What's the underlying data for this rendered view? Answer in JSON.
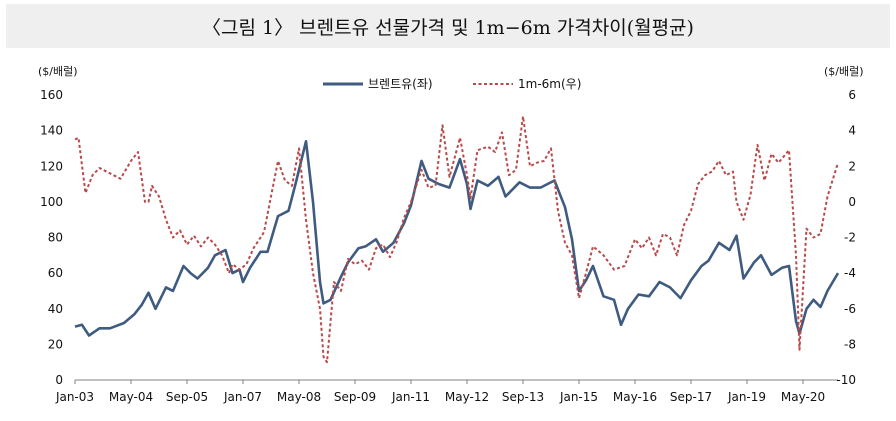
{
  "title": "〈그림 1〉 브렌트유 선물가격 및 1m−6m 가격차이(월평균)",
  "chart_data": {
    "type": "line",
    "title": "〈그림 1〉 브렌트유 선물가격 및 1m−6m 가격차이(월평균)",
    "y_left_unit": "($/배럴)",
    "y_right_unit": "($/배럴)",
    "y_left_range": [
      0,
      160
    ],
    "y_right_range": [
      -10,
      6
    ],
    "y_left_ticks": [
      "0",
      "20",
      "40",
      "60",
      "80",
      "100",
      "120",
      "140",
      "160"
    ],
    "y_right_ticks": [
      "-10",
      "-8",
      "-6",
      "-4",
      "-2",
      "0",
      "2",
      "4",
      "6"
    ],
    "x_tick_labels": [
      "Jan-03",
      "May-04",
      "Sep-05",
      "Jan-07",
      "May-08",
      "Sep-09",
      "Jan-11",
      "May-12",
      "Sep-13",
      "Jan-15",
      "May-16",
      "Sep-17",
      "Jan-19",
      "May-20"
    ],
    "x_start": "Jan-03",
    "x_end": "Mar-21",
    "legend_position": "top-center",
    "grid": false,
    "series": [
      {
        "name": "브렌트유(좌)",
        "axis": "left",
        "color": "#3f5b80",
        "style": "solid",
        "points": [
          [
            "2003-01",
            30
          ],
          [
            "2003-03",
            31
          ],
          [
            "2003-05",
            25
          ],
          [
            "2003-08",
            29
          ],
          [
            "2003-11",
            29
          ],
          [
            "2004-03",
            32
          ],
          [
            "2004-06",
            37
          ],
          [
            "2004-08",
            42
          ],
          [
            "2004-10",
            49
          ],
          [
            "2004-12",
            40
          ],
          [
            "2005-03",
            52
          ],
          [
            "2005-05",
            50
          ],
          [
            "2005-08",
            64
          ],
          [
            "2005-10",
            60
          ],
          [
            "2005-12",
            57
          ],
          [
            "2006-03",
            63
          ],
          [
            "2006-05",
            70
          ],
          [
            "2006-08",
            73
          ],
          [
            "2006-10",
            60
          ],
          [
            "2006-12",
            62
          ],
          [
            "2007-01",
            55
          ],
          [
            "2007-03",
            63
          ],
          [
            "2007-06",
            72
          ],
          [
            "2007-08",
            72
          ],
          [
            "2007-11",
            92
          ],
          [
            "2008-02",
            95
          ],
          [
            "2008-04",
            110
          ],
          [
            "2008-07",
            134
          ],
          [
            "2008-09",
            100
          ],
          [
            "2008-11",
            55
          ],
          [
            "2008-12",
            43
          ],
          [
            "2009-02",
            45
          ],
          [
            "2009-05",
            58
          ],
          [
            "2009-07",
            66
          ],
          [
            "2009-10",
            74
          ],
          [
            "2009-12",
            75
          ],
          [
            "2010-03",
            79
          ],
          [
            "2010-05",
            72
          ],
          [
            "2010-08",
            77
          ],
          [
            "2010-11",
            88
          ],
          [
            "2011-01",
            98
          ],
          [
            "2011-04",
            123
          ],
          [
            "2011-06",
            113
          ],
          [
            "2011-09",
            110
          ],
          [
            "2011-12",
            108
          ],
          [
            "2012-03",
            124
          ],
          [
            "2012-05",
            110
          ],
          [
            "2012-06",
            96
          ],
          [
            "2012-08",
            112
          ],
          [
            "2012-11",
            109
          ],
          [
            "2013-02",
            114
          ],
          [
            "2013-04",
            103
          ],
          [
            "2013-08",
            111
          ],
          [
            "2013-11",
            108
          ],
          [
            "2014-02",
            108
          ],
          [
            "2014-06",
            112
          ],
          [
            "2014-09",
            97
          ],
          [
            "2014-11",
            79
          ],
          [
            "2015-01",
            50
          ],
          [
            "2015-03",
            56
          ],
          [
            "2015-05",
            64
          ],
          [
            "2015-08",
            47
          ],
          [
            "2015-11",
            45
          ],
          [
            "2016-01",
            31
          ],
          [
            "2016-03",
            40
          ],
          [
            "2016-06",
            48
          ],
          [
            "2016-09",
            47
          ],
          [
            "2016-12",
            55
          ],
          [
            "2017-03",
            52
          ],
          [
            "2017-06",
            46
          ],
          [
            "2017-09",
            56
          ],
          [
            "2017-12",
            64
          ],
          [
            "2018-02",
            67
          ],
          [
            "2018-05",
            77
          ],
          [
            "2018-08",
            73
          ],
          [
            "2018-10",
            81
          ],
          [
            "2018-12",
            57
          ],
          [
            "2019-03",
            66
          ],
          [
            "2019-05",
            70
          ],
          [
            "2019-08",
            59
          ],
          [
            "2019-11",
            63
          ],
          [
            "2020-01",
            64
          ],
          [
            "2020-03",
            33
          ],
          [
            "2020-04",
            26
          ],
          [
            "2020-06",
            40
          ],
          [
            "2020-08",
            45
          ],
          [
            "2020-10",
            41
          ],
          [
            "2020-12",
            50
          ],
          [
            "2021-03",
            60
          ]
        ]
      },
      {
        "name": "1m-6m(우)",
        "axis": "right",
        "color": "#b84a4a",
        "style": "dashed",
        "points": [
          [
            "2003-01",
            3.5
          ],
          [
            "2003-02",
            3.6
          ],
          [
            "2003-04",
            0.5
          ],
          [
            "2003-06",
            1.5
          ],
          [
            "2003-08",
            1.9
          ],
          [
            "2003-11",
            1.6
          ],
          [
            "2004-02",
            1.3
          ],
          [
            "2004-05",
            2.3
          ],
          [
            "2004-07",
            2.8
          ],
          [
            "2004-09",
            0.0
          ],
          [
            "2004-10",
            0.0
          ],
          [
            "2004-11",
            0.9
          ],
          [
            "2005-01",
            0.3
          ],
          [
            "2005-03",
            -1.0
          ],
          [
            "2005-05",
            -2.0
          ],
          [
            "2005-07",
            -1.6
          ],
          [
            "2005-09",
            -2.4
          ],
          [
            "2005-11",
            -1.9
          ],
          [
            "2006-01",
            -2.5
          ],
          [
            "2006-03",
            -2.0
          ],
          [
            "2006-05",
            -2.4
          ],
          [
            "2006-07",
            -3.0
          ],
          [
            "2006-09",
            -4.0
          ],
          [
            "2006-10",
            -3.5
          ],
          [
            "2006-12",
            -3.8
          ],
          [
            "2007-02",
            -3.5
          ],
          [
            "2007-04",
            -2.6
          ],
          [
            "2007-07",
            -1.7
          ],
          [
            "2007-09",
            0.3
          ],
          [
            "2007-11",
            2.3
          ],
          [
            "2008-01",
            1.2
          ],
          [
            "2008-03",
            0.9
          ],
          [
            "2008-05",
            3.0
          ],
          [
            "2008-07",
            -1.0
          ],
          [
            "2008-09",
            -4.0
          ],
          [
            "2008-11",
            -6.0
          ],
          [
            "2008-12",
            -8.7
          ],
          [
            "2009-01",
            -9.0
          ],
          [
            "2009-03",
            -4.5
          ],
          [
            "2009-05",
            -5.0
          ],
          [
            "2009-07",
            -3.2
          ],
          [
            "2009-09",
            -3.5
          ],
          [
            "2009-11",
            -3.3
          ],
          [
            "2010-01",
            -3.8
          ],
          [
            "2010-03",
            -2.6
          ],
          [
            "2010-05",
            -2.4
          ],
          [
            "2010-07",
            -3.1
          ],
          [
            "2010-09",
            -2.2
          ],
          [
            "2010-11",
            -0.9
          ],
          [
            "2011-01",
            0.0
          ],
          [
            "2011-04",
            1.8
          ],
          [
            "2011-06",
            0.8
          ],
          [
            "2011-08",
            0.9
          ],
          [
            "2011-10",
            4.3
          ],
          [
            "2011-12",
            1.4
          ],
          [
            "2012-03",
            3.6
          ],
          [
            "2012-05",
            1.5
          ],
          [
            "2012-06",
            0.2
          ],
          [
            "2012-08",
            2.9
          ],
          [
            "2012-11",
            3.1
          ],
          [
            "2013-01",
            2.8
          ],
          [
            "2013-03",
            3.9
          ],
          [
            "2013-05",
            1.5
          ],
          [
            "2013-07",
            1.8
          ],
          [
            "2013-09",
            4.8
          ],
          [
            "2013-11",
            2.0
          ],
          [
            "2014-01",
            2.2
          ],
          [
            "2014-03",
            2.3
          ],
          [
            "2014-05",
            3.0
          ],
          [
            "2014-07",
            -0.5
          ],
          [
            "2014-09",
            -2.3
          ],
          [
            "2014-11",
            -3.0
          ],
          [
            "2015-01",
            -5.4
          ],
          [
            "2015-03",
            -4.0
          ],
          [
            "2015-05",
            -2.5
          ],
          [
            "2015-08",
            -3.0
          ],
          [
            "2015-11",
            -3.8
          ],
          [
            "2016-02",
            -3.6
          ],
          [
            "2016-05",
            -2.1
          ],
          [
            "2016-07",
            -2.6
          ],
          [
            "2016-09",
            -2.0
          ],
          [
            "2016-11",
            -3.0
          ],
          [
            "2017-01",
            -1.8
          ],
          [
            "2017-03",
            -2.0
          ],
          [
            "2017-05",
            -3.0
          ],
          [
            "2017-07",
            -1.3
          ],
          [
            "2017-09",
            -0.5
          ],
          [
            "2017-11",
            1.0
          ],
          [
            "2018-01",
            1.5
          ],
          [
            "2018-03",
            1.7
          ],
          [
            "2018-05",
            2.3
          ],
          [
            "2018-07",
            1.5
          ],
          [
            "2018-09",
            1.7
          ],
          [
            "2018-10",
            0.0
          ],
          [
            "2018-12",
            -1.0
          ],
          [
            "2019-02",
            0.4
          ],
          [
            "2019-04",
            3.2
          ],
          [
            "2019-06",
            1.2
          ],
          [
            "2019-08",
            2.7
          ],
          [
            "2019-10",
            2.2
          ],
          [
            "2020-01",
            2.9
          ],
          [
            "2020-03",
            -3.0
          ],
          [
            "2020-04",
            -8.3
          ],
          [
            "2020-06",
            -1.5
          ],
          [
            "2020-08",
            -2.0
          ],
          [
            "2020-10",
            -1.8
          ],
          [
            "2020-12",
            0.3
          ],
          [
            "2021-03",
            2.2
          ]
        ]
      }
    ]
  }
}
